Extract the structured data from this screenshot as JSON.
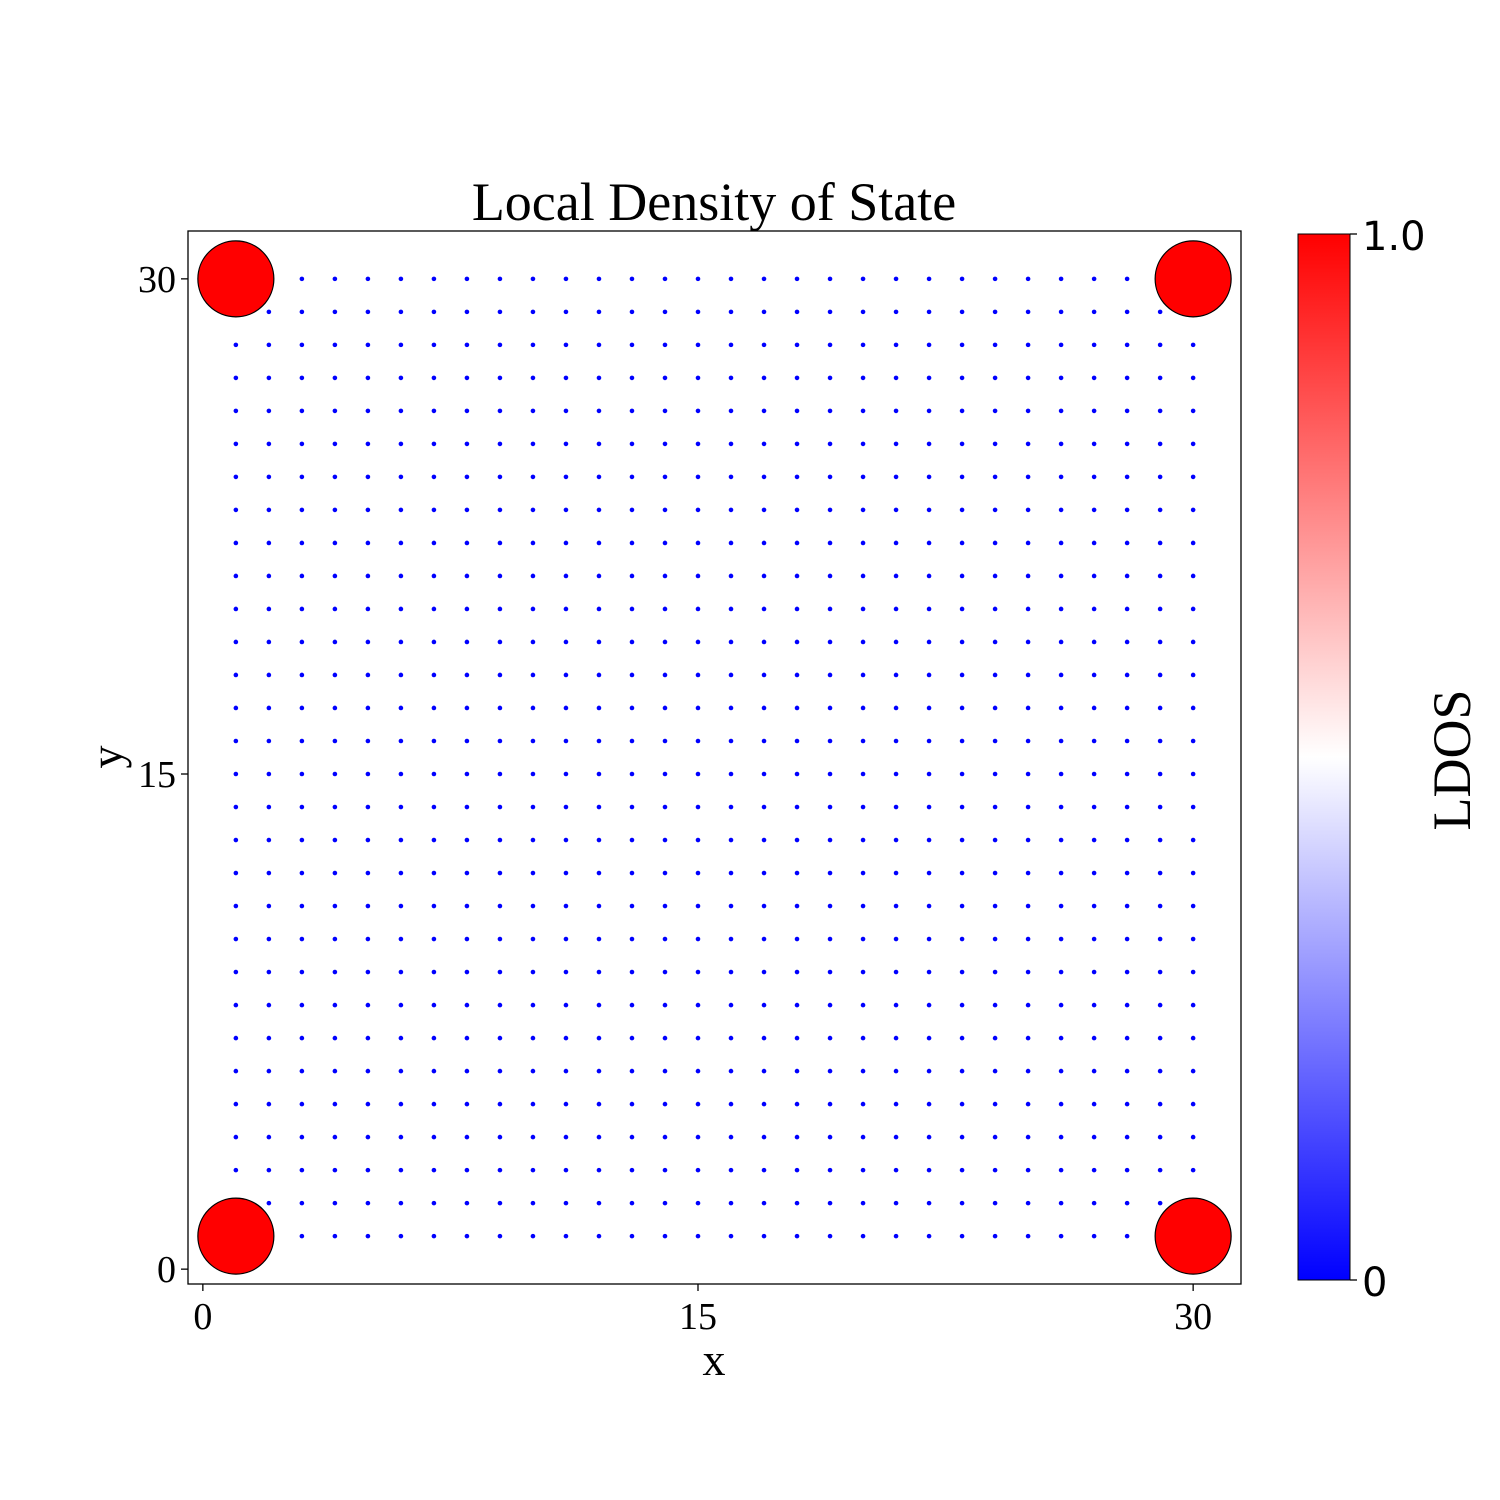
{
  "chart_data": {
    "type": "scatter",
    "title": "Local Density of State",
    "xlabel": "x",
    "ylabel": "y",
    "xlim": [
      -0.45,
      31.45
    ],
    "ylim": [
      -0.45,
      31.45
    ],
    "xticks": [
      0,
      15,
      30
    ],
    "yticks": [
      0,
      15,
      30
    ],
    "grid": false,
    "lattice": {
      "x_start": 1,
      "x_end": 30,
      "y_start": 1,
      "y_end": 30,
      "step": 1
    },
    "marker_color": "#0000ff",
    "high_ldos_points": [
      {
        "x": 1,
        "y": 1,
        "ldos": 1.0
      },
      {
        "x": 30,
        "y": 1,
        "ldos": 1.0
      },
      {
        "x": 1,
        "y": 30,
        "ldos": 1.0
      },
      {
        "x": 30,
        "y": 30,
        "ldos": 1.0
      }
    ],
    "high_ldos_color": "#ff0000",
    "colorbar": {
      "label": "LDOS",
      "min_label": "0",
      "max_label": "1.0",
      "colors": [
        "#0000ff",
        "#ffffff",
        "#ff0000"
      ]
    }
  }
}
